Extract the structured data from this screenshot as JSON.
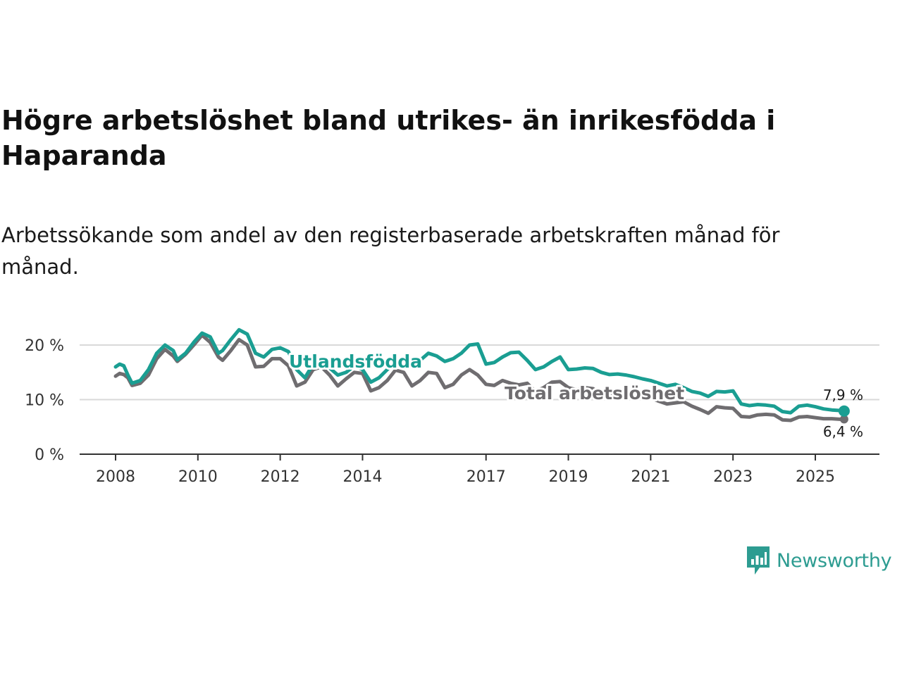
{
  "title": "Högre arbetslöshet bland utrikes- än inrikesfödda i Haparanda",
  "subtitle": "Arbetssökande som andel av den registerbaserade arbetskraften månad för månad.",
  "brand": {
    "name": "Newsworthy",
    "color": "#2d9c91"
  },
  "chart_data": {
    "type": "line",
    "title": "Högre arbetslöshet bland utrikes- än inrikesfödda i Haparanda",
    "xlabel": "",
    "ylabel": "",
    "ylim": [
      0,
      25
    ],
    "xlim": [
      2007.7,
      2026.6
    ],
    "grid": true,
    "y_ticks": [
      {
        "value": 0,
        "label": "0 %"
      },
      {
        "value": 10,
        "label": "10 %"
      },
      {
        "value": 20,
        "label": "20 %"
      }
    ],
    "x_ticks": [
      {
        "value": 2008,
        "label": "2008"
      },
      {
        "value": 2010,
        "label": "2010"
      },
      {
        "value": 2012,
        "label": "2012"
      },
      {
        "value": 2014,
        "label": "2014"
      },
      {
        "value": 2017,
        "label": "2017"
      },
      {
        "value": 2019,
        "label": "2019"
      },
      {
        "value": 2021,
        "label": "2021"
      },
      {
        "value": 2023,
        "label": "2023"
      },
      {
        "value": 2025,
        "label": "2025"
      }
    ],
    "series": [
      {
        "name": "Utlandsfödda",
        "color": "#1a9e92",
        "end_label": "7,9 %",
        "x": [
          2008.0,
          2008.1,
          2008.2,
          2008.3,
          2008.4,
          2008.6,
          2008.8,
          2009.0,
          2009.2,
          2009.4,
          2009.5,
          2009.7,
          2009.9,
          2010.1,
          2010.3,
          2010.5,
          2010.6,
          2010.8,
          2011.0,
          2011.2,
          2011.4,
          2011.6,
          2011.8,
          2012.0,
          2012.2,
          2012.4,
          2012.6,
          2012.8,
          2013.0,
          2013.2,
          2013.4,
          2013.6,
          2013.8,
          2014.0,
          2014.2,
          2014.4,
          2014.6,
          2014.8,
          2015.0,
          2015.2,
          2015.4,
          2015.6,
          2015.8,
          2016.0,
          2016.2,
          2016.4,
          2016.6,
          2016.8,
          2017.0,
          2017.2,
          2017.4,
          2017.6,
          2017.8,
          2018.0,
          2018.2,
          2018.4,
          2018.6,
          2018.8,
          2019.0,
          2019.2,
          2019.4,
          2019.6,
          2019.8,
          2020.0,
          2020.2,
          2020.4,
          2020.6,
          2020.8,
          2021.0,
          2021.2,
          2021.4,
          2021.6,
          2021.8,
          2022.0,
          2022.2,
          2022.4,
          2022.6,
          2022.8,
          2023.0,
          2023.2,
          2023.4,
          2023.6,
          2023.8,
          2024.0,
          2024.2,
          2024.4,
          2024.6,
          2024.8,
          2025.0,
          2025.2,
          2025.4,
          2025.6,
          2025.7
        ],
        "values": [
          16.0,
          16.5,
          16.2,
          14.5,
          13.0,
          13.5,
          15.5,
          18.5,
          20.0,
          19.0,
          17.3,
          18.5,
          20.5,
          22.2,
          21.5,
          18.5,
          19.0,
          21.0,
          22.8,
          22.0,
          18.5,
          17.8,
          19.2,
          19.5,
          18.8,
          15.5,
          14.0,
          16.5,
          17.5,
          15.8,
          14.5,
          15.0,
          16.2,
          15.5,
          13.2,
          14.0,
          15.5,
          16.8,
          16.5,
          16.0,
          17.2,
          18.5,
          18.0,
          17.0,
          17.5,
          18.5,
          20.0,
          20.2,
          16.5,
          16.8,
          17.8,
          18.6,
          18.7,
          17.2,
          15.5,
          16.0,
          17.0,
          17.8,
          15.5,
          15.6,
          15.8,
          15.7,
          15.0,
          14.6,
          14.7,
          14.5,
          14.2,
          13.8,
          13.5,
          13.0,
          12.5,
          12.8,
          12.2,
          11.5,
          11.2,
          10.6,
          11.5,
          11.4,
          11.6,
          9.2,
          8.9,
          9.1,
          9.0,
          8.8,
          7.8,
          7.6,
          8.8,
          9.0,
          8.7,
          8.3,
          8.1,
          8.0,
          7.9
        ]
      },
      {
        "name": "Total arbetslöshet",
        "color": "#6f6d70",
        "end_label": "6,4 %",
        "x": [
          2008.0,
          2008.1,
          2008.2,
          2008.3,
          2008.4,
          2008.6,
          2008.8,
          2009.0,
          2009.2,
          2009.4,
          2009.5,
          2009.7,
          2009.9,
          2010.1,
          2010.3,
          2010.5,
          2010.6,
          2010.8,
          2011.0,
          2011.2,
          2011.4,
          2011.6,
          2011.8,
          2012.0,
          2012.2,
          2012.4,
          2012.6,
          2012.8,
          2013.0,
          2013.2,
          2013.4,
          2013.6,
          2013.8,
          2014.0,
          2014.2,
          2014.4,
          2014.6,
          2014.8,
          2015.0,
          2015.2,
          2015.4,
          2015.6,
          2015.8,
          2016.0,
          2016.2,
          2016.4,
          2016.6,
          2016.8,
          2017.0,
          2017.2,
          2017.4,
          2017.6,
          2017.8,
          2018.0,
          2018.2,
          2018.4,
          2018.6,
          2018.8,
          2019.0,
          2019.2,
          2019.4,
          2019.6,
          2019.8,
          2020.0,
          2020.2,
          2020.4,
          2020.6,
          2020.8,
          2021.0,
          2021.2,
          2021.4,
          2021.6,
          2021.8,
          2022.0,
          2022.2,
          2022.4,
          2022.6,
          2022.8,
          2023.0,
          2023.2,
          2023.4,
          2023.6,
          2023.8,
          2024.0,
          2024.2,
          2024.4,
          2024.6,
          2024.8,
          2025.0,
          2025.2,
          2025.4,
          2025.6,
          2025.7
        ],
        "values": [
          14.3,
          14.8,
          14.6,
          14.0,
          12.6,
          13.0,
          14.5,
          17.5,
          19.2,
          18.0,
          17.0,
          18.3,
          20.0,
          21.8,
          20.5,
          17.8,
          17.2,
          19.0,
          21.0,
          20.0,
          16.0,
          16.1,
          17.5,
          17.5,
          16.2,
          12.5,
          13.2,
          15.5,
          16.0,
          14.5,
          12.5,
          13.8,
          15.0,
          14.8,
          11.6,
          12.2,
          13.5,
          15.4,
          15.0,
          12.5,
          13.5,
          15.0,
          14.8,
          12.2,
          12.8,
          14.5,
          15.5,
          14.5,
          12.8,
          12.6,
          13.5,
          13.0,
          12.7,
          13.0,
          11.5,
          12.2,
          13.2,
          13.3,
          12.2,
          11.8,
          12.2,
          12.0,
          11.0,
          11.0,
          11.2,
          11.0,
          10.8,
          10.5,
          10.3,
          9.7,
          9.2,
          9.4,
          9.6,
          8.8,
          8.2,
          7.5,
          8.7,
          8.5,
          8.4,
          6.9,
          6.8,
          7.2,
          7.3,
          7.2,
          6.3,
          6.2,
          6.8,
          6.9,
          6.7,
          6.5,
          6.5,
          6.4,
          6.4
        ]
      }
    ]
  }
}
